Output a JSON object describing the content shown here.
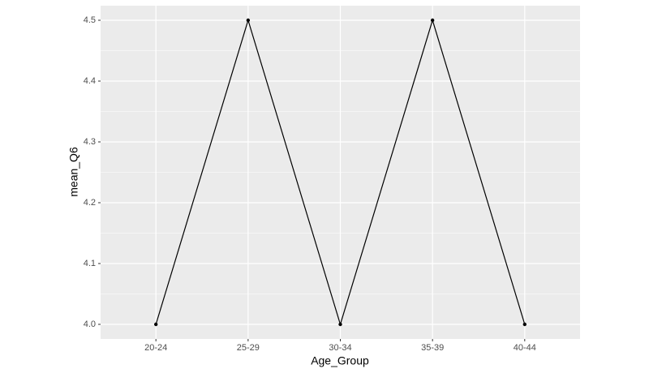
{
  "chart_data": {
    "type": "line",
    "x_label": "Age_Group",
    "y_label": "mean_Q6",
    "categories": [
      "20-24",
      "25-29",
      "30-34",
      "35-39",
      "40-44"
    ],
    "values": [
      4.0,
      4.5,
      4.0,
      4.5,
      4.0
    ],
    "color": "#000000",
    "ylim": [
      3.976,
      4.524
    ],
    "yticks": [
      {
        "value": 4.0,
        "label": "4.0"
      },
      4.1,
      4.2,
      4.3,
      4.4,
      4.5
    ],
    "grid": true
  }
}
